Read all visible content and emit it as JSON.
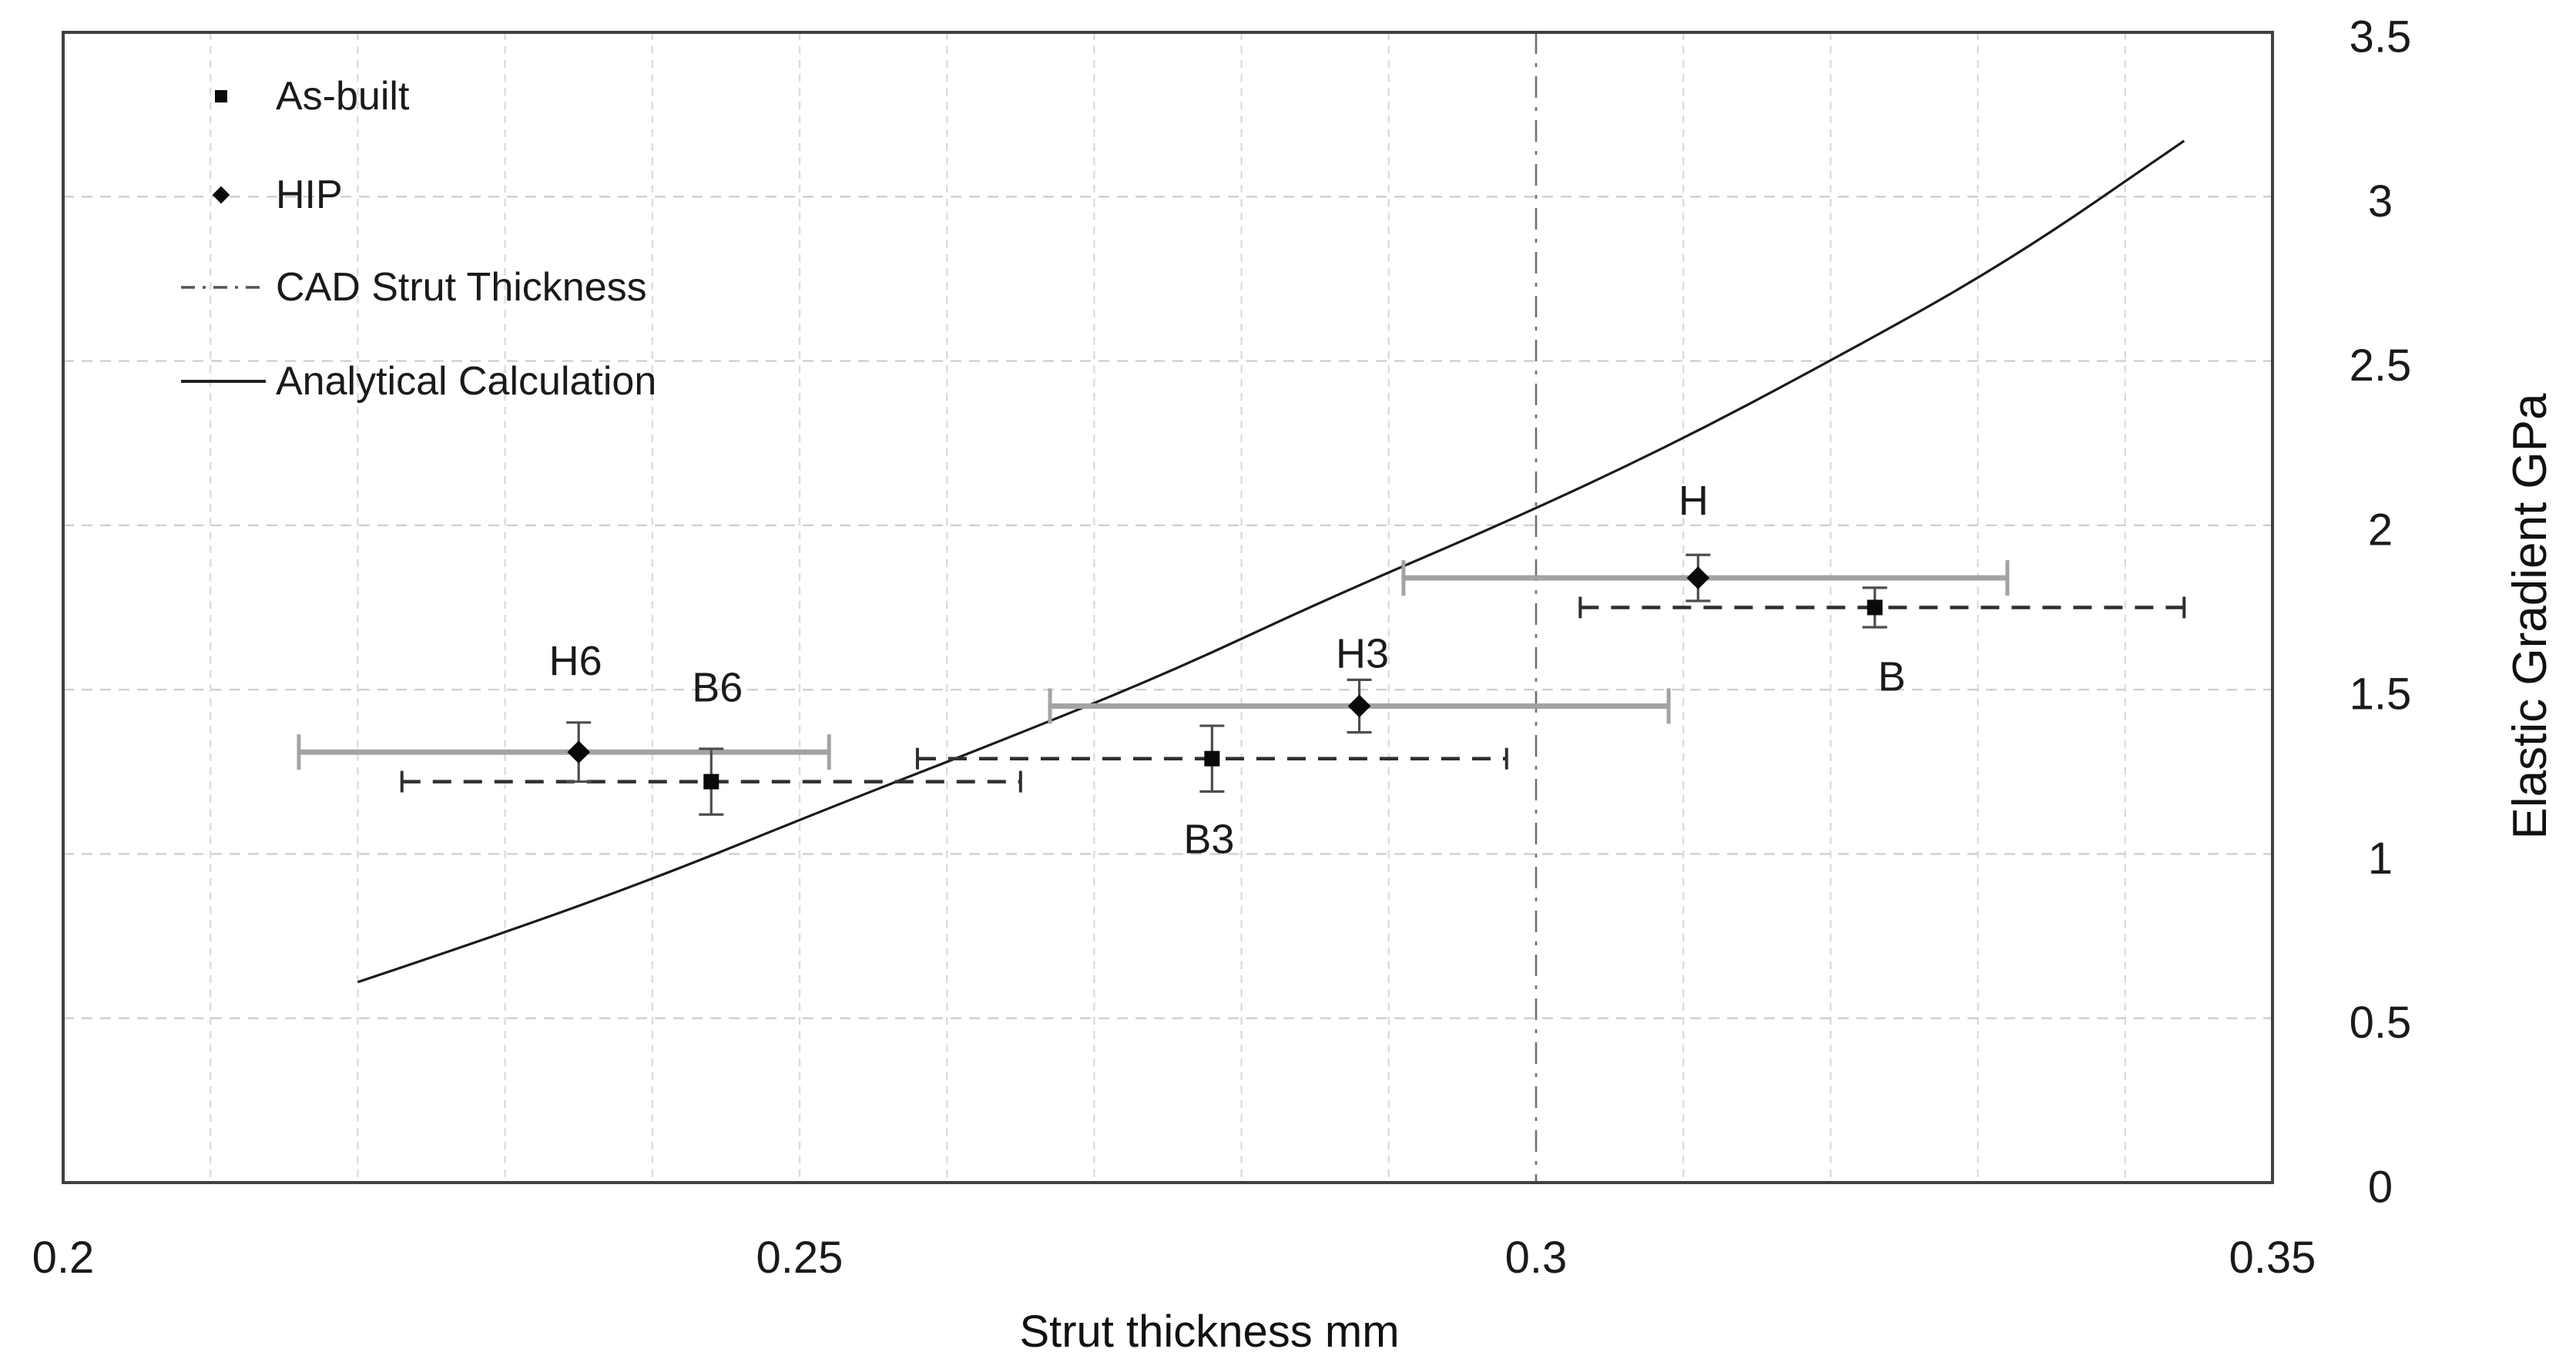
{
  "figure": {
    "xlabel": "Strut thickness mm",
    "ylabel": "Elastic Gradient GPa"
  },
  "legend": [
    {
      "id": "as-built",
      "label": "As-built",
      "sample": "square-marker"
    },
    {
      "id": "hip",
      "label": "HIP",
      "sample": "diamond-marker"
    },
    {
      "id": "cad-strut-thickness",
      "label": "CAD Strut Thickness",
      "sample": "dashed-line"
    },
    {
      "id": "analytical-calculation",
      "label": "Analytical Calculation",
      "sample": "solid-line"
    }
  ],
  "colors": {
    "frame": "#404040",
    "minor_vgrid": "#dcdcdc",
    "hgrid": "#d6cccc",
    "ref_line": "#6f6f6f",
    "curve": "#1a1a1a",
    "solid_bar": "#a3a3a3",
    "dashed_bar": "#2f2f2f",
    "err_bar": "#4d4d4d",
    "marker": "#0a0a0a",
    "point_label": "#333333",
    "tick_label": "#1a1a1a"
  },
  "chart_data": {
    "type": "scatter",
    "title": "",
    "xlabel": "Strut thickness mm",
    "ylabel": "Elastic Gradient GPa",
    "xlim": [
      0.2,
      0.35
    ],
    "ylim": [
      0,
      3.5
    ],
    "x_ticks": [
      {
        "value": 0.2,
        "label": "0.2"
      },
      {
        "value": 0.25,
        "label": "0.25"
      },
      {
        "value": 0.3,
        "label": "0.3"
      },
      {
        "value": 0.35,
        "label": "0.35"
      }
    ],
    "y_ticks": [
      {
        "value": 0,
        "label": "0"
      },
      {
        "value": 0.5,
        "label": "0.5"
      },
      {
        "value": 1,
        "label": "1"
      },
      {
        "value": 1.5,
        "label": "1.5"
      },
      {
        "value": 2,
        "label": "2"
      },
      {
        "value": 2.5,
        "label": "2.5"
      },
      {
        "value": 3,
        "label": "3"
      },
      {
        "value": 3.5,
        "label": "3.5"
      }
    ],
    "x_minor_grid_step": 0.01,
    "y_grid_step": 0.5,
    "reference_line_x": 0.3,
    "grid": true,
    "legend_position": "top-left",
    "series": [
      {
        "name": "As-built",
        "marker": "square",
        "bar_style": "dashed",
        "points": [
          {
            "label": "B6",
            "x": 0.244,
            "y": 1.22,
            "y_err": 0.1,
            "x_range": [
              0.223,
              0.265
            ],
            "label_dx": 8,
            "label_dy": -122
          },
          {
            "label": "B3",
            "x": 0.278,
            "y": 1.29,
            "y_err": 0.1,
            "x_range": [
              0.258,
              0.298
            ],
            "label_dx": -4,
            "label_dy": 105
          },
          {
            "label": "B",
            "x": 0.323,
            "y": 1.75,
            "y_err": 0.06,
            "x_range": [
              0.303,
              0.344
            ],
            "label_dx": 22,
            "label_dy": 90
          }
        ]
      },
      {
        "name": "HIP",
        "marker": "diamond",
        "bar_style": "solid",
        "points": [
          {
            "label": "H6",
            "x": 0.235,
            "y": 1.31,
            "y_err": 0.09,
            "x_range": [
              0.216,
              0.252
            ],
            "label_dx": -4,
            "label_dy": -118
          },
          {
            "label": "H3",
            "x": 0.288,
            "y": 1.45,
            "y_err": 0.08,
            "x_range": [
              0.267,
              0.309
            ],
            "label_dx": 4,
            "label_dy": -68
          },
          {
            "label": "H",
            "x": 0.311,
            "y": 1.84,
            "y_err": 0.07,
            "x_range": [
              0.291,
              0.332
            ],
            "label_dx": -6,
            "label_dy": -100
          }
        ]
      }
    ],
    "analytical_curve": [
      [
        0.22,
        0.61
      ],
      [
        0.23,
        0.76
      ],
      [
        0.241,
        0.94
      ],
      [
        0.252,
        1.14
      ],
      [
        0.264,
        1.35
      ],
      [
        0.275,
        1.55
      ],
      [
        0.286,
        1.78
      ],
      [
        0.298,
        2.01
      ],
      [
        0.309,
        2.24
      ],
      [
        0.32,
        2.5
      ],
      [
        0.332,
        2.8
      ],
      [
        0.344,
        3.17
      ]
    ]
  }
}
